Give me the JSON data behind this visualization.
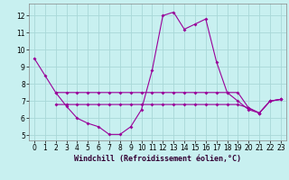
{
  "bg_color": "#c8f0f0",
  "grid_color": "#a8d8d8",
  "line_color": "#990099",
  "marker_color": "#990099",
  "xlabel": "Windchill (Refroidissement éolien,°C)",
  "xlabel_fontsize": 6,
  "tick_fontsize": 5.5,
  "xlim": [
    -0.5,
    23.5
  ],
  "ylim": [
    4.7,
    12.7
  ],
  "yticks": [
    5,
    6,
    7,
    8,
    9,
    10,
    11,
    12
  ],
  "xticks": [
    0,
    1,
    2,
    3,
    4,
    5,
    6,
    7,
    8,
    9,
    10,
    11,
    12,
    13,
    14,
    15,
    16,
    17,
    18,
    19,
    20,
    21,
    22,
    23
  ],
  "line1_x": [
    0,
    1,
    2,
    3,
    4,
    5,
    6,
    7,
    8,
    9,
    10,
    11,
    12,
    13,
    14,
    15,
    16,
    17,
    18,
    19,
    20,
    21,
    22,
    23
  ],
  "line1_y": [
    9.5,
    8.5,
    7.5,
    6.7,
    6.0,
    5.7,
    5.5,
    5.05,
    5.05,
    5.5,
    6.5,
    8.8,
    12.0,
    12.2,
    11.2,
    11.5,
    11.8,
    9.3,
    7.5,
    7.0,
    6.5,
    6.3,
    7.0,
    7.1
  ],
  "line2_x": [
    2,
    3,
    4,
    5,
    6,
    7,
    8,
    9,
    10,
    11,
    12,
    13,
    14,
    15,
    16,
    17,
    18,
    19,
    20,
    21,
    22,
    23
  ],
  "line2_y": [
    7.5,
    7.5,
    7.5,
    7.5,
    7.5,
    7.5,
    7.5,
    7.5,
    7.5,
    7.5,
    7.5,
    7.5,
    7.5,
    7.5,
    7.5,
    7.5,
    7.5,
    7.5,
    6.6,
    6.3,
    7.0,
    7.1
  ],
  "line3_x": [
    2,
    3,
    4,
    5,
    6,
    7,
    8,
    9,
    10,
    11,
    12,
    13,
    14,
    15,
    16,
    17,
    18,
    19,
    20,
    21,
    22,
    23
  ],
  "line3_y": [
    6.8,
    6.8,
    6.8,
    6.8,
    6.8,
    6.8,
    6.8,
    6.8,
    6.8,
    6.8,
    6.8,
    6.8,
    6.8,
    6.8,
    6.8,
    6.8,
    6.8,
    6.8,
    6.6,
    6.3,
    7.0,
    7.1
  ]
}
